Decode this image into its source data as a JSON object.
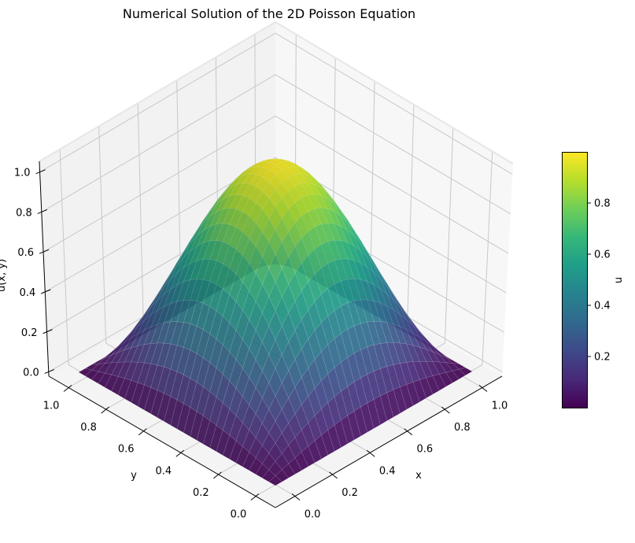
{
  "chart_data": {
    "type": "surface3d",
    "title": "Numerical Solution of the 2D Poisson Equation",
    "xlabel": "x",
    "ylabel": "y",
    "zlabel": "u(x, y)",
    "function": "u(x,y) = sin(pi*x) * sin(pi*y)",
    "grid_points": 30,
    "xlim": [
      0.0,
      1.0
    ],
    "ylim": [
      0.0,
      1.0
    ],
    "zlim": [
      0.0,
      1.0
    ],
    "x_ticks": [
      "0.0",
      "0.2",
      "0.4",
      "0.6",
      "0.8",
      "1.0"
    ],
    "y_ticks": [
      "0.0",
      "0.2",
      "0.4",
      "0.6",
      "0.8",
      "1.0"
    ],
    "z_ticks": [
      "0.0",
      "0.2",
      "0.4",
      "0.6",
      "0.8",
      "1.0"
    ],
    "peak": {
      "x": 0.5,
      "y": 0.5,
      "u": 1.0
    },
    "boundary_value": 0.0,
    "colormap": "viridis",
    "colormap_stops": [
      "#440154",
      "#482878",
      "#3e4989",
      "#31688e",
      "#26828e",
      "#1f9e89",
      "#35b779",
      "#6ece58",
      "#b5de2b",
      "#fde725"
    ],
    "colorbar": {
      "label": "u",
      "ticks": [
        "0.2",
        "0.4",
        "0.6",
        "0.8"
      ],
      "range": [
        0.0,
        1.0
      ]
    },
    "grid": true,
    "view": {
      "elev": 30,
      "azim": 45
    }
  }
}
